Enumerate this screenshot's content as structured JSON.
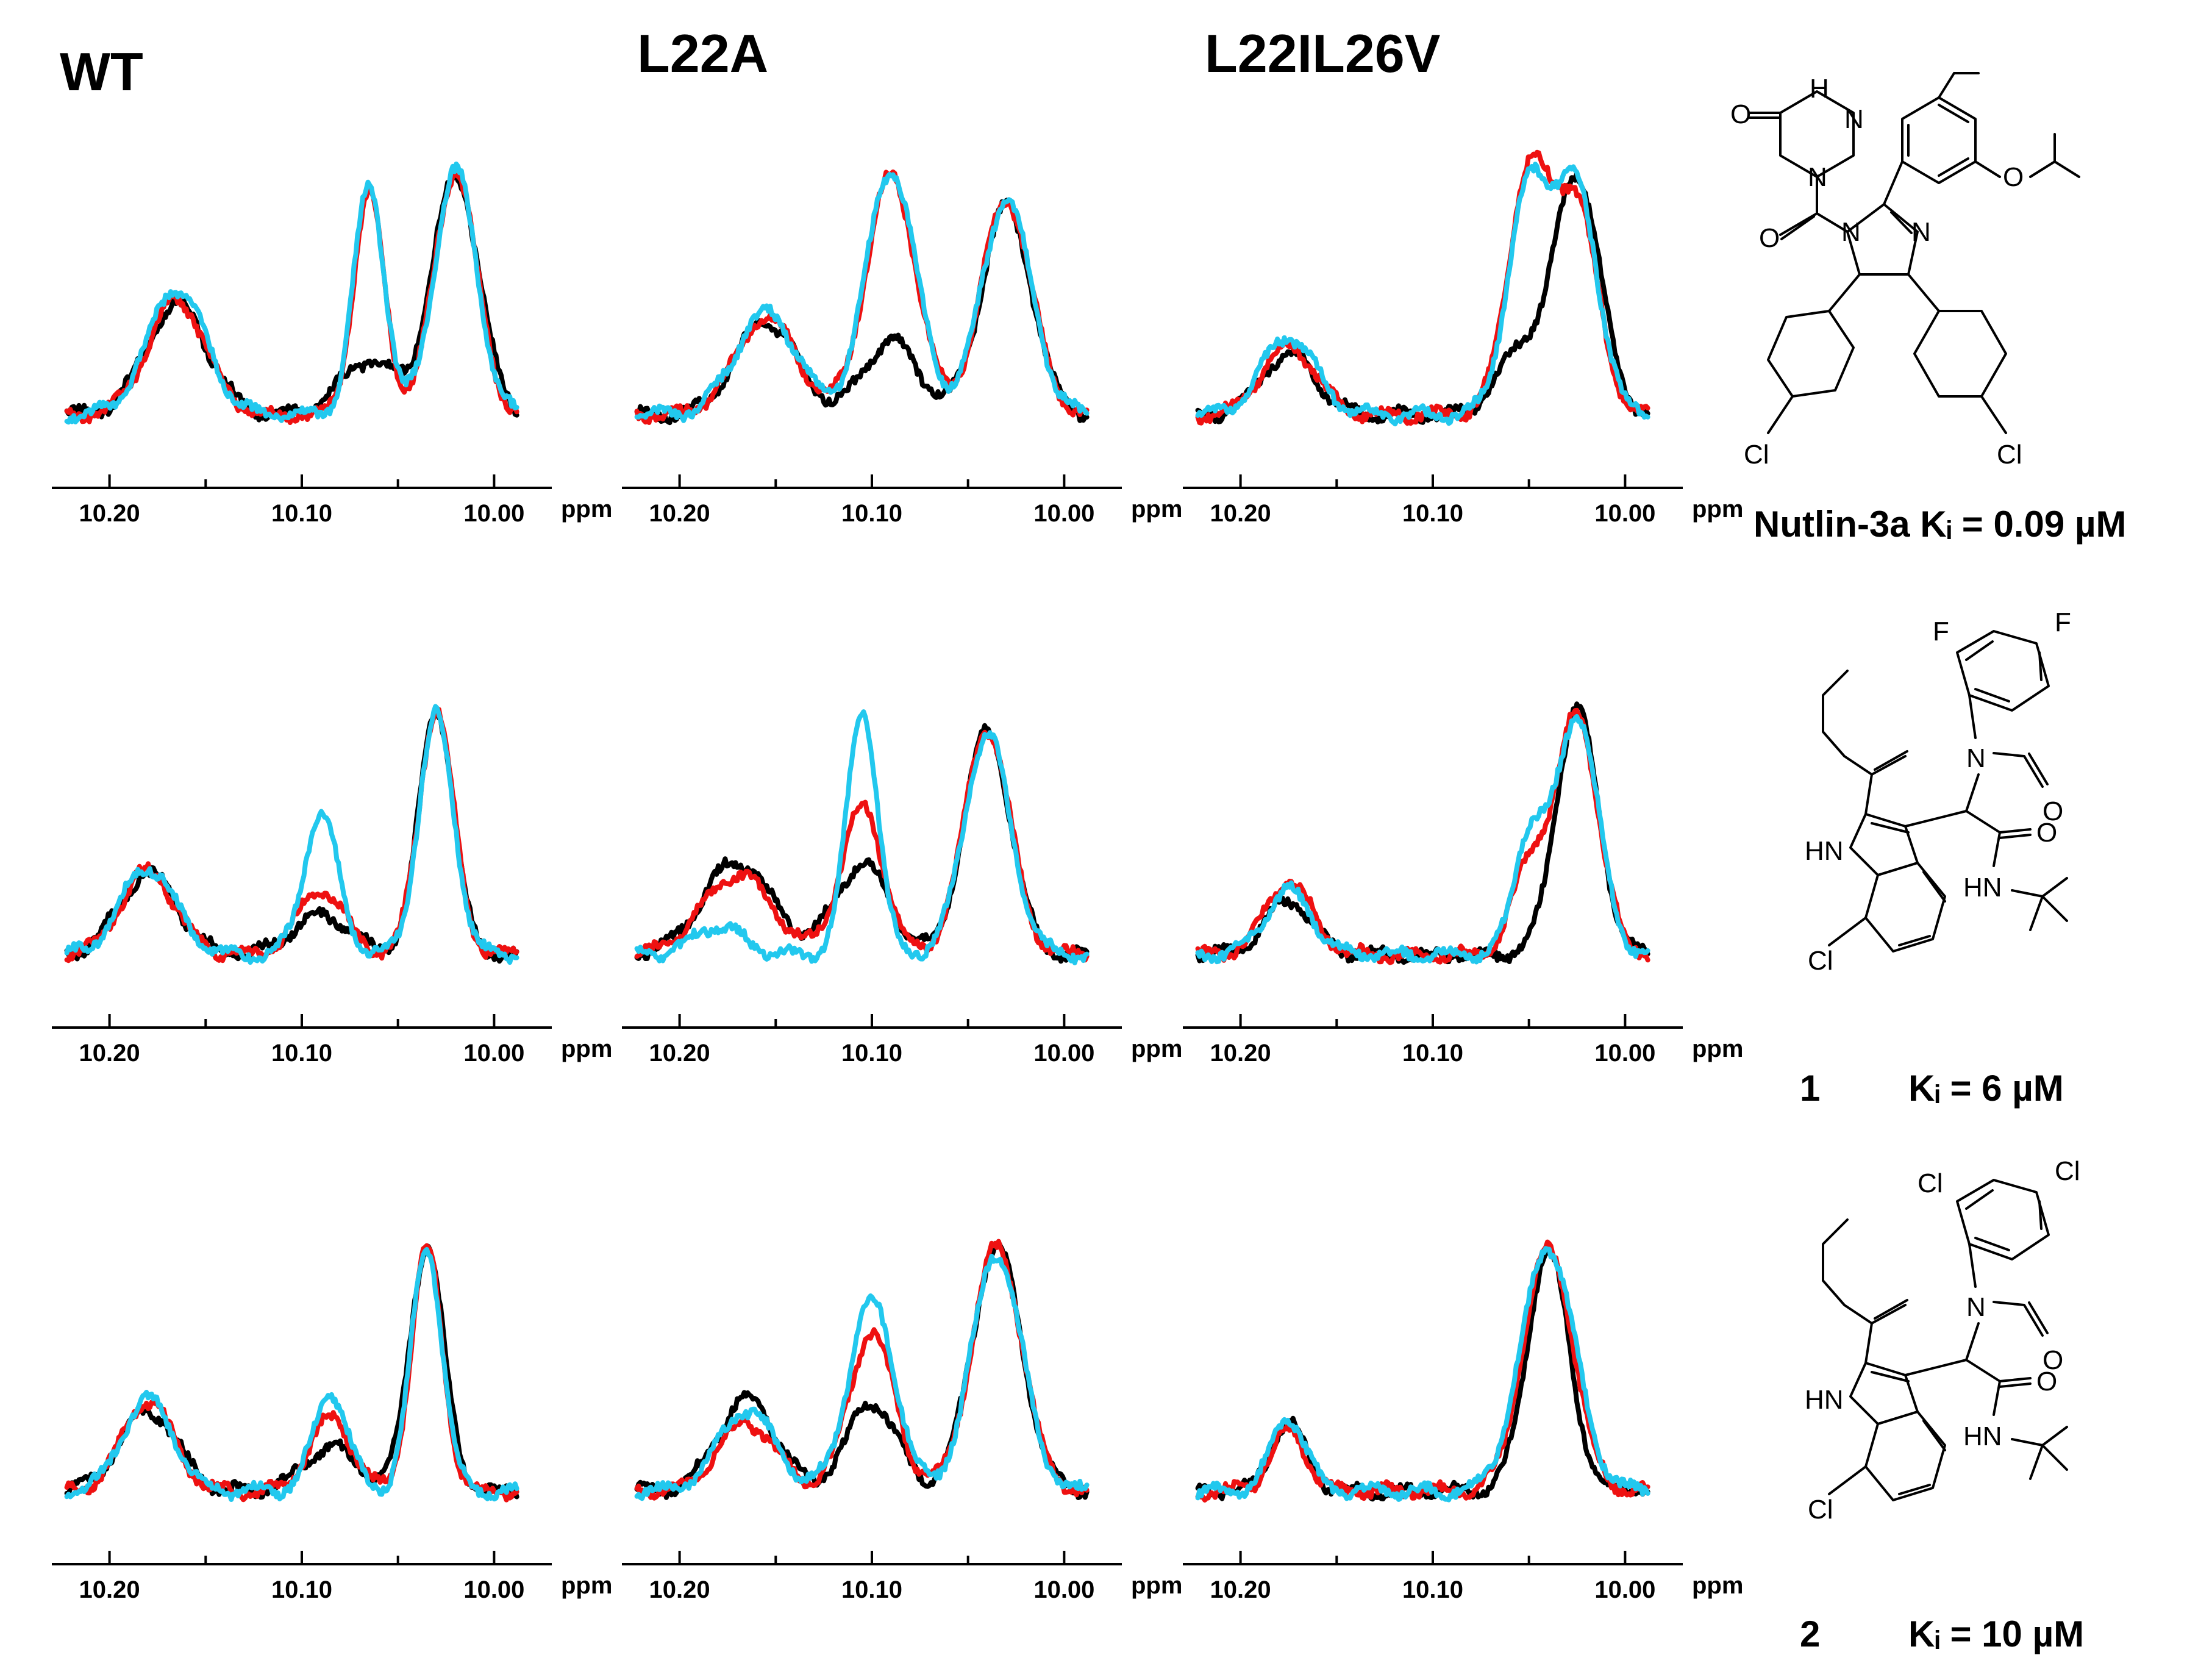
{
  "colors": {
    "black": "#000000",
    "red": "#ee1111",
    "cyan": "#22c8ee"
  },
  "column_titles": [
    "WT",
    "L22A",
    "L22IL26V"
  ],
  "chart_data": [
    {
      "type": "line",
      "row": 0,
      "col": 0,
      "xlabel": "ppm",
      "xlim": [
        10.23,
        9.97
      ],
      "xticks": [
        10.2,
        10.1,
        10.0
      ],
      "tick_labels": [
        "10.20",
        "10.10",
        "10.00"
      ],
      "series": [
        {
          "name": "black",
          "peaks": [
            [
              10.165,
              0.45,
              0.016
            ],
            [
              10.065,
              0.22,
              0.015
            ],
            [
              10.02,
              0.98,
              0.012
            ]
          ]
        },
        {
          "name": "red",
          "peaks": [
            [
              10.165,
              0.47,
              0.015
            ],
            [
              10.065,
              0.9,
              0.008
            ],
            [
              10.02,
              1.0,
              0.011
            ]
          ]
        },
        {
          "name": "cyan",
          "peaks": [
            [
              10.165,
              0.52,
              0.015
            ],
            [
              10.065,
              0.94,
              0.008
            ],
            [
              10.02,
              1.0,
              0.011
            ]
          ]
        }
      ]
    },
    {
      "type": "line",
      "row": 0,
      "col": 1,
      "xlabel": "ppm",
      "xlim": [
        10.23,
        9.97
      ],
      "xticks": [
        10.2,
        10.1,
        10.0
      ],
      "tick_labels": [
        "10.20",
        "10.10",
        "10.00"
      ],
      "series": [
        {
          "name": "black",
          "peaks": [
            [
              10.155,
              0.38,
              0.016
            ],
            [
              10.09,
              0.3,
              0.014
            ],
            [
              10.03,
              0.85,
              0.013
            ]
          ]
        },
        {
          "name": "red",
          "peaks": [
            [
              10.155,
              0.4,
              0.016
            ],
            [
              10.09,
              0.98,
              0.013
            ],
            [
              10.03,
              0.88,
              0.013
            ]
          ]
        },
        {
          "name": "cyan",
          "peaks": [
            [
              10.155,
              0.42,
              0.016
            ],
            [
              10.09,
              1.0,
              0.013
            ],
            [
              10.03,
              0.88,
              0.013
            ]
          ]
        }
      ]
    },
    {
      "type": "line",
      "row": 0,
      "col": 2,
      "xlabel": "ppm",
      "xlim": [
        10.23,
        9.97
      ],
      "xticks": [
        10.2,
        10.1,
        10.0
      ],
      "tick_labels": [
        "10.20",
        "10.10",
        "10.00"
      ],
      "series": [
        {
          "name": "black",
          "peaks": [
            [
              10.175,
              0.25,
              0.014
            ],
            [
              10.055,
              0.25,
              0.012
            ],
            [
              10.025,
              0.98,
              0.012
            ]
          ]
        },
        {
          "name": "red",
          "peaks": [
            [
              10.175,
              0.28,
              0.014
            ],
            [
              10.05,
              0.98,
              0.011
            ],
            [
              10.025,
              0.84,
              0.011
            ]
          ]
        },
        {
          "name": "cyan",
          "peaks": [
            [
              10.175,
              0.32,
              0.014
            ],
            [
              10.05,
              0.92,
              0.011
            ],
            [
              10.025,
              0.9,
              0.011
            ]
          ]
        }
      ]
    },
    {
      "type": "line",
      "row": 1,
      "col": 0,
      "xlabel": "ppm",
      "xlim": [
        10.23,
        9.97
      ],
      "xticks": [
        10.2,
        10.1,
        10.0
      ],
      "tick_labels": [
        "10.20",
        "10.10",
        "10.00"
      ],
      "series": [
        {
          "name": "black",
          "peaks": [
            [
              10.18,
              0.33,
              0.015
            ],
            [
              10.09,
              0.16,
              0.015
            ],
            [
              10.03,
              1.0,
              0.009
            ]
          ]
        },
        {
          "name": "red",
          "peaks": [
            [
              10.18,
              0.34,
              0.014
            ],
            [
              10.09,
              0.27,
              0.012
            ],
            [
              10.03,
              1.0,
              0.009
            ]
          ]
        },
        {
          "name": "cyan",
          "peaks": [
            [
              10.18,
              0.36,
              0.014
            ],
            [
              10.09,
              0.58,
              0.009
            ],
            [
              10.03,
              0.98,
              0.009
            ]
          ]
        }
      ]
    },
    {
      "type": "line",
      "row": 1,
      "col": 1,
      "xlabel": "ppm",
      "xlim": [
        10.23,
        9.97
      ],
      "xticks": [
        10.2,
        10.1,
        10.0
      ],
      "tick_labels": [
        "10.20",
        "10.10",
        "10.00"
      ],
      "series": [
        {
          "name": "black",
          "peaks": [
            [
              10.17,
              0.38,
              0.018
            ],
            [
              10.105,
              0.37,
              0.014
            ],
            [
              10.04,
              0.92,
              0.012
            ]
          ]
        },
        {
          "name": "red",
          "peaks": [
            [
              10.17,
              0.33,
              0.018
            ],
            [
              10.105,
              0.6,
              0.011
            ],
            [
              10.04,
              0.92,
              0.012
            ]
          ]
        },
        {
          "name": "cyan",
          "peaks": [
            [
              10.18,
              0.12,
              0.012
            ],
            [
              10.105,
              1.0,
              0.008
            ],
            [
              10.04,
              0.9,
              0.012
            ]
          ]
        }
      ]
    },
    {
      "type": "line",
      "row": 1,
      "col": 2,
      "xlabel": "ppm",
      "xlim": [
        10.23,
        9.97
      ],
      "xticks": [
        10.2,
        10.1,
        10.0
      ],
      "tick_labels": [
        "10.20",
        "10.10",
        "10.00"
      ],
      "series": [
        {
          "name": "black",
          "peaks": [
            [
              10.175,
              0.22,
              0.012
            ],
            [
              10.025,
              1.0,
              0.011
            ]
          ]
        },
        {
          "name": "red",
          "peaks": [
            [
              10.175,
              0.3,
              0.012
            ],
            [
              10.05,
              0.35,
              0.009
            ],
            [
              10.025,
              0.98,
              0.011
            ]
          ]
        },
        {
          "name": "cyan",
          "peaks": [
            [
              10.175,
              0.26,
              0.012
            ],
            [
              10.05,
              0.47,
              0.008
            ],
            [
              10.025,
              0.98,
              0.011
            ]
          ]
        }
      ]
    },
    {
      "type": "line",
      "row": 2,
      "col": 0,
      "xlabel": "ppm",
      "xlim": [
        10.23,
        9.97
      ],
      "xticks": [
        10.2,
        10.1,
        10.0
      ],
      "tick_labels": [
        "10.20",
        "10.10",
        "10.00"
      ],
      "series": [
        {
          "name": "black",
          "peaks": [
            [
              10.18,
              0.33,
              0.015
            ],
            [
              10.085,
              0.18,
              0.014
            ],
            [
              10.035,
              1.0,
              0.009
            ]
          ]
        },
        {
          "name": "red",
          "peaks": [
            [
              10.18,
              0.37,
              0.013
            ],
            [
              10.085,
              0.3,
              0.011
            ],
            [
              10.035,
              1.0,
              0.008
            ]
          ]
        },
        {
          "name": "cyan",
          "peaks": [
            [
              10.18,
              0.38,
              0.013
            ],
            [
              10.085,
              0.4,
              0.009
            ],
            [
              10.035,
              1.0,
              0.008
            ]
          ]
        }
      ]
    },
    {
      "type": "line",
      "row": 2,
      "col": 1,
      "xlabel": "ppm",
      "xlim": [
        10.23,
        9.97
      ],
      "xticks": [
        10.2,
        10.1,
        10.0
      ],
      "tick_labels": [
        "10.20",
        "10.10",
        "10.00"
      ],
      "series": [
        {
          "name": "black",
          "peaks": [
            [
              10.165,
              0.38,
              0.015
            ],
            [
              10.1,
              0.36,
              0.013
            ],
            [
              10.035,
              1.0,
              0.013
            ]
          ]
        },
        {
          "name": "red",
          "peaks": [
            [
              10.165,
              0.28,
              0.015
            ],
            [
              10.1,
              0.65,
              0.012
            ],
            [
              10.035,
              1.0,
              0.013
            ]
          ]
        },
        {
          "name": "cyan",
          "peaks": [
            [
              10.165,
              0.33,
              0.015
            ],
            [
              10.1,
              0.78,
              0.012
            ],
            [
              10.035,
              0.98,
              0.013
            ]
          ]
        }
      ]
    },
    {
      "type": "line",
      "row": 2,
      "col": 2,
      "xlabel": "ppm",
      "xlim": [
        10.23,
        9.97
      ],
      "xticks": [
        10.2,
        10.1,
        10.0
      ],
      "tick_labels": [
        "10.20",
        "10.10",
        "10.00"
      ],
      "series": [
        {
          "name": "black",
          "peaks": [
            [
              10.175,
              0.28,
              0.009
            ],
            [
              10.04,
              0.98,
              0.011
            ]
          ]
        },
        {
          "name": "red",
          "peaks": [
            [
              10.175,
              0.25,
              0.009
            ],
            [
              10.04,
              0.99,
              0.013
            ]
          ]
        },
        {
          "name": "cyan",
          "peaks": [
            [
              10.175,
              0.3,
              0.009
            ],
            [
              10.04,
              1.0,
              0.014
            ]
          ]
        }
      ]
    }
  ],
  "compounds": [
    {
      "id": "nutlin",
      "caption": "Nutlin-3a Kᵢ = 0.09 µM",
      "atoms": {
        "nh": "H",
        "n": "N",
        "o_keto": "O",
        "o_amide": "O",
        "n2": "N",
        "n3": "N",
        "o_iso": "O",
        "cl_left": "Cl",
        "cl_right": "Cl"
      }
    },
    {
      "id": "compound-1",
      "caption_number": "1",
      "caption_ki": "Kᵢ = 6 µM",
      "atoms": {
        "f_ortho": "F",
        "f_para": "F",
        "n_formyl": "N",
        "o_formyl": "O",
        "hn_indole": "HN",
        "o_amide": "O",
        "hn_amide": "HN",
        "cl": "Cl"
      }
    },
    {
      "id": "compound-2",
      "caption_number": "2",
      "caption_ki": "Kᵢ = 10 µM",
      "atoms": {
        "cl_ortho": "Cl",
        "cl_para": "Cl",
        "n_formyl": "N",
        "o_formyl": "O",
        "hn_indole": "HN",
        "o_amide": "O",
        "hn_amide": "HN",
        "cl": "Cl"
      }
    }
  ]
}
